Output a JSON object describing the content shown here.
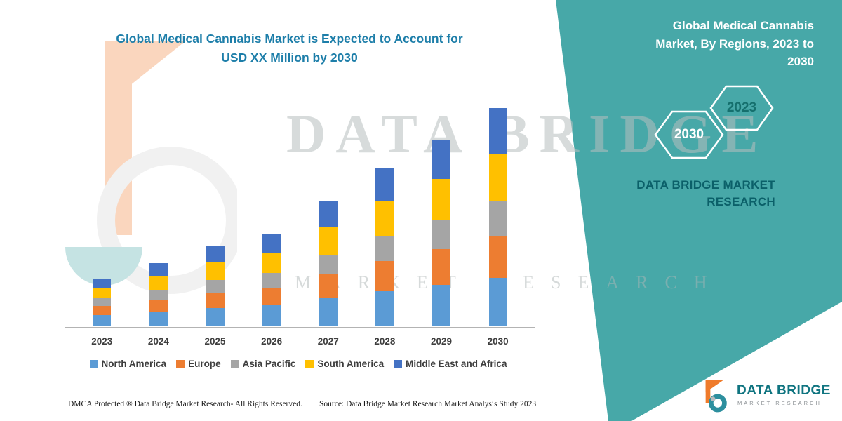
{
  "page": {
    "title_line1": "Global Medical Cannabis Market is Expected to Account for",
    "title_line2": "USD XX Million by 2030"
  },
  "right_panel": {
    "heading": "Global Medical Cannabis Market, By Regions, 2023 to 2030",
    "hexagons": [
      {
        "label": "2030"
      },
      {
        "label": "2023"
      }
    ],
    "brand": "DATA BRIDGE MARKET RESEARCH"
  },
  "watermark": {
    "line1": "DATA BRIDGE",
    "line2": "MARKET RESEARCH"
  },
  "branding": {
    "logo_title": "DATA BRIDGE",
    "logo_subtitle": "MARKET RESEARCH"
  },
  "footer": {
    "dmca": "DMCA Protected ® Data Bridge Market Research-  All Rights Reserved.",
    "source": "Source: Data Bridge Market Research  Market Analysis Study 2023"
  },
  "colors": {
    "teal_panel": "#47A8A8",
    "title_text": "#1D7EA9",
    "brand_dark_teal": "#0B6069",
    "north_america": "#5B9BD5",
    "europe": "#ED7D31",
    "asia_pacific": "#A5A5A5",
    "south_america": "#FFC000",
    "middle_east_africa": "#4472C4"
  },
  "chart_data": {
    "type": "bar",
    "stacked": true,
    "title": "Global Medical Cannabis Market is Expected to Account for USD XX Million by 2030",
    "categories": [
      "2023",
      "2024",
      "2025",
      "2026",
      "2027",
      "2028",
      "2029",
      "2030"
    ],
    "series": [
      {
        "name": "North America",
        "color": "#5B9BD5",
        "values": [
          15,
          20,
          25,
          29,
          39,
          49,
          58,
          68
        ]
      },
      {
        "name": "Europe",
        "color": "#ED7D31",
        "values": [
          13,
          17,
          22,
          25,
          34,
          43,
          51,
          60
        ]
      },
      {
        "name": "Asia Pacific",
        "color": "#A5A5A5",
        "values": [
          11,
          14,
          18,
          21,
          28,
          36,
          42,
          49
        ]
      },
      {
        "name": "South America",
        "color": "#FFC000",
        "values": [
          15,
          20,
          25,
          29,
          39,
          49,
          58,
          68
        ]
      },
      {
        "name": "Middle East and Africa",
        "color": "#4472C4",
        "values": [
          13,
          18,
          23,
          27,
          37,
          47,
          56,
          65
        ]
      }
    ],
    "xlabel": "",
    "ylabel": "",
    "ylim": [
      0,
      350
    ],
    "grid": false,
    "legend_position": "bottom",
    "value_labels_shown": false,
    "note": "Absolute values masked as 'USD XX Million' in source; series values estimated from relative bar heights"
  }
}
